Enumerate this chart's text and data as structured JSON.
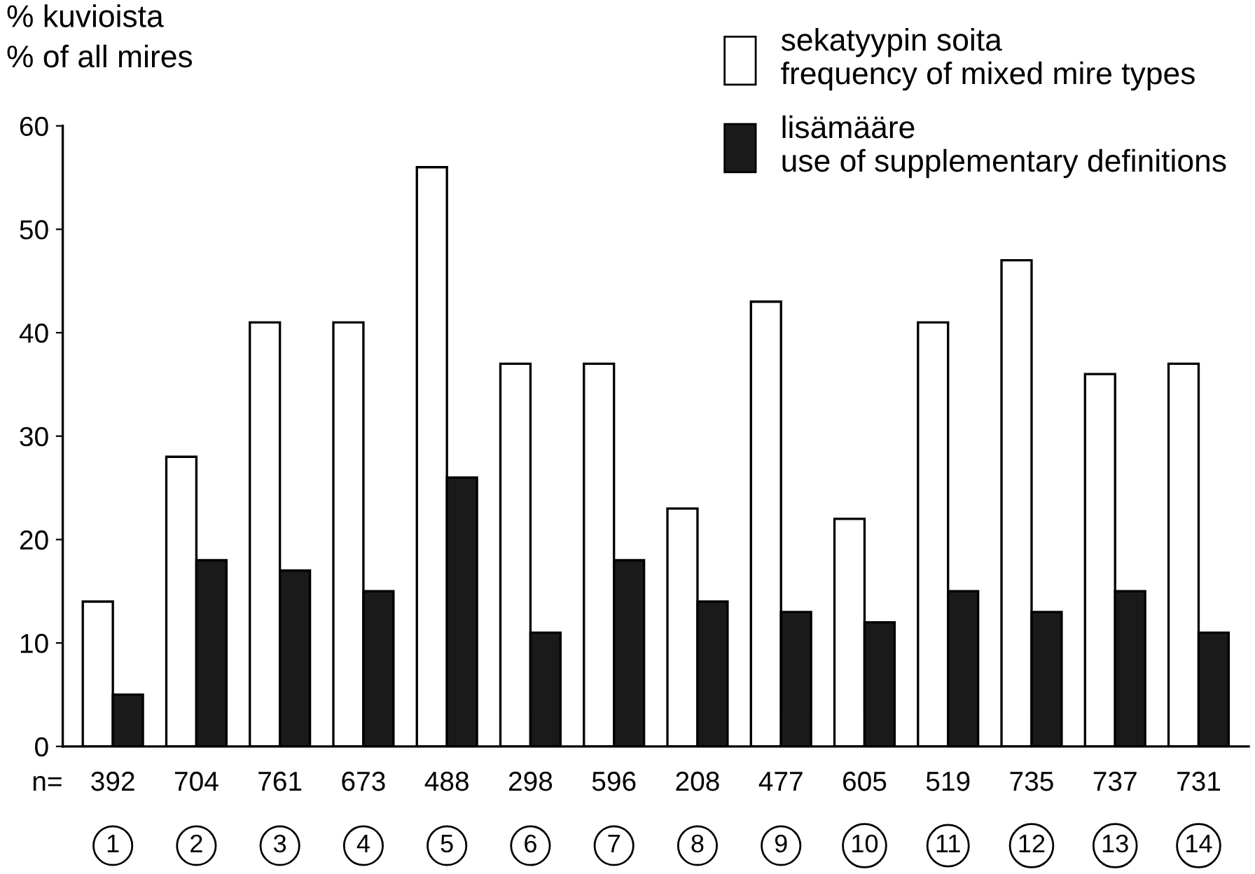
{
  "chart_data": {
    "type": "bar",
    "ylabel": "% kuvioista\n% of all mires",
    "categories": [
      "1",
      "2",
      "3",
      "4",
      "5",
      "6",
      "7",
      "8",
      "9",
      "10",
      "11",
      "12",
      "13",
      "14"
    ],
    "series": [
      {
        "name": "sekatyypin soita\nfrequency of mixed mire types",
        "color": "#ffffff",
        "values": [
          14,
          28,
          41,
          41,
          56,
          37,
          37,
          23,
          43,
          22,
          41,
          47,
          36,
          37
        ]
      },
      {
        "name": "lisämääre\nuse of supplementary definitions",
        "color": "#1a1a1a",
        "values": [
          5,
          18,
          17,
          15,
          26,
          11,
          18,
          14,
          13,
          12,
          15,
          13,
          15,
          11
        ]
      }
    ],
    "ylim": [
      0,
      60
    ],
    "yticks": [
      0,
      10,
      20,
      30,
      40,
      50,
      60
    ],
    "grid": false,
    "legend": "top right",
    "annotations": [
      "n=",
      "392",
      "704",
      "761",
      "673",
      "488",
      "298",
      "596",
      "208",
      "477",
      "605",
      "519",
      "735",
      "737",
      "731"
    ]
  }
}
